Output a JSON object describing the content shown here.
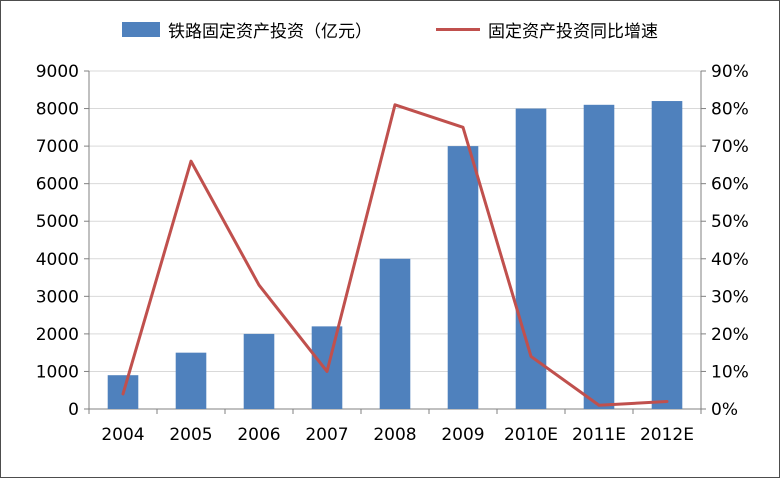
{
  "chart_data": {
    "type": "bar",
    "subtype": "bar-and-line-combo",
    "title": "",
    "categories": [
      "2004",
      "2005",
      "2006",
      "2007",
      "2008",
      "2009",
      "2010E",
      "2011E",
      "2012E"
    ],
    "series": [
      {
        "name": "铁路固定资产投资（亿元）",
        "type": "bar",
        "axis": "left",
        "color": "#4f81bd",
        "values": [
          900,
          1500,
          2000,
          2200,
          4000,
          7000,
          8000,
          8100,
          8200
        ]
      },
      {
        "name": "固定资产投资同比增速",
        "type": "line",
        "axis": "right",
        "color": "#c0504d",
        "values": [
          4,
          66,
          33,
          10,
          81,
          75,
          14,
          1,
          2
        ]
      }
    ],
    "left_axis": {
      "min": 0,
      "max": 9000,
      "step": 1000,
      "suffix": ""
    },
    "right_axis": {
      "min": 0,
      "max": 90,
      "step": 10,
      "suffix": "%"
    },
    "grid": true,
    "legend_position": "top"
  },
  "colors": {
    "bar": "#4f81bd",
    "line": "#c0504d",
    "grid": "#d9d9d9",
    "axis": "#808080",
    "text": "#000000",
    "background": "#ffffff"
  }
}
